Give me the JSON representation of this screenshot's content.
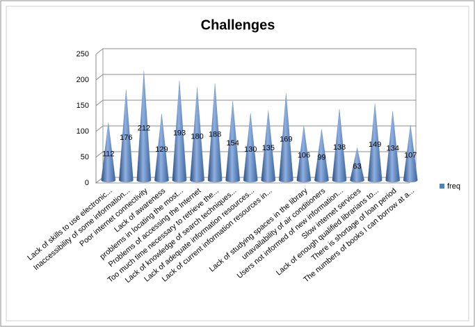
{
  "chart_data": {
    "type": "cone",
    "title": "Challenges",
    "categories": [
      "Lack of skills to use electronic...",
      "Inaccessibility of  some information...",
      "Poor internet connectivity",
      "Lack of awareness",
      "problems in locating the most...",
      "Problems of accessing the Internet",
      "Too much time necessary to retrieve the...",
      "Lack of knowledge of search techniques...",
      "Lack of adequate information resources...",
      "Lack of current information resources in...",
      null,
      "Lack of studying spaces in the library",
      "unavailability of air conditioners",
      "Users not informed of new information...",
      "Slow internet services",
      "Lack of enough qualified librarians to...",
      "There is shortage of loan period",
      "The numbers of books I can borrow at a..."
    ],
    "series": [
      {
        "name": "freq",
        "color": "#4f81bd",
        "values": [
          112,
          176,
          212,
          129,
          193,
          180,
          188,
          154,
          130,
          135,
          169,
          106,
          99,
          138,
          63,
          149,
          134,
          107
        ]
      }
    ],
    "ylim": [
      0,
      250
    ],
    "yticks": [
      0,
      50,
      100,
      150,
      200,
      250
    ],
    "grid": true,
    "legend": "right"
  }
}
